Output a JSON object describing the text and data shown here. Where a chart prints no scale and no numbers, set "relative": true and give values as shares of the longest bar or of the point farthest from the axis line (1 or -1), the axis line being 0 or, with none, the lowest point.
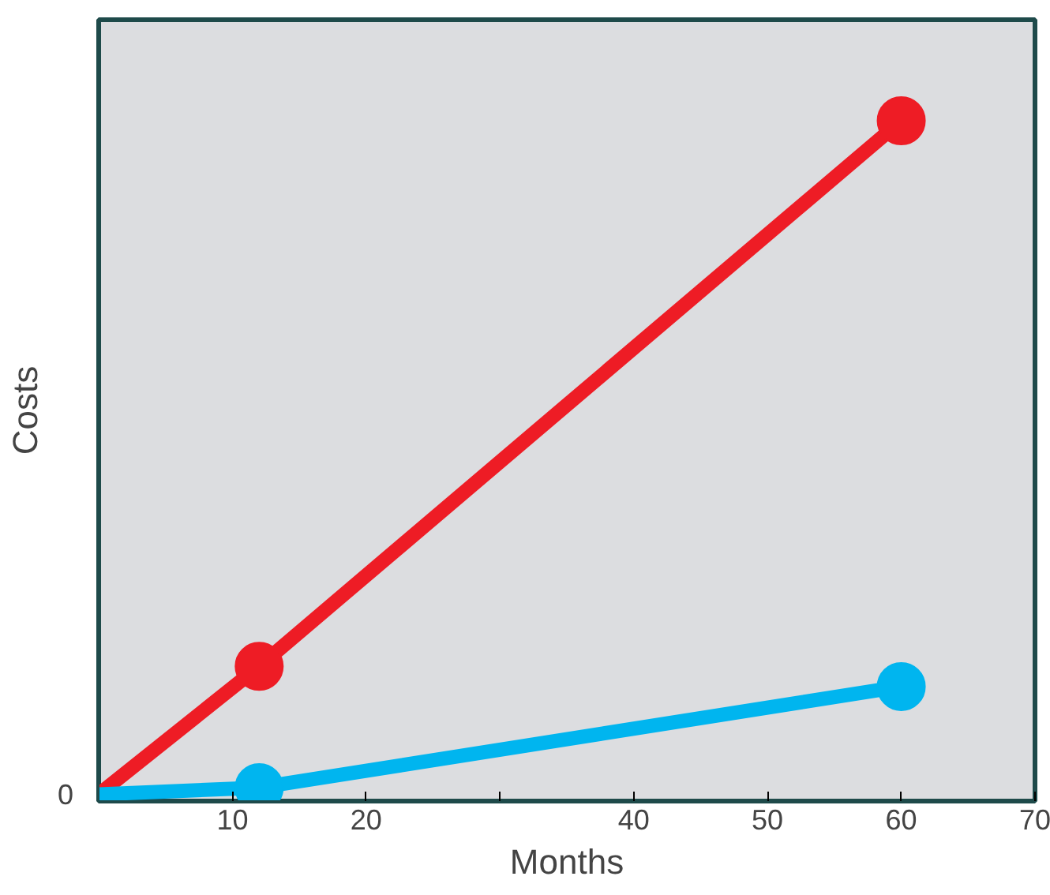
{
  "chart_data": {
    "type": "line",
    "xlabel": "Months",
    "ylabel": "Costs",
    "relative": true,
    "x": [
      0,
      12,
      60
    ],
    "xlim": [
      0,
      70
    ],
    "xticks": [
      10,
      20,
      {
        "value": 30,
        "label": null
      },
      40,
      50,
      60,
      70
    ],
    "series": [
      {
        "color": "#ee1c25",
        "values": [
          0,
          0.19,
          1
        ]
      },
      {
        "color": "#00b5ef",
        "values": [
          0,
          0.01,
          0.16
        ]
      }
    ],
    "marker": "circle",
    "line_style": "solid",
    "annotations": [
      "0"
    ]
  }
}
